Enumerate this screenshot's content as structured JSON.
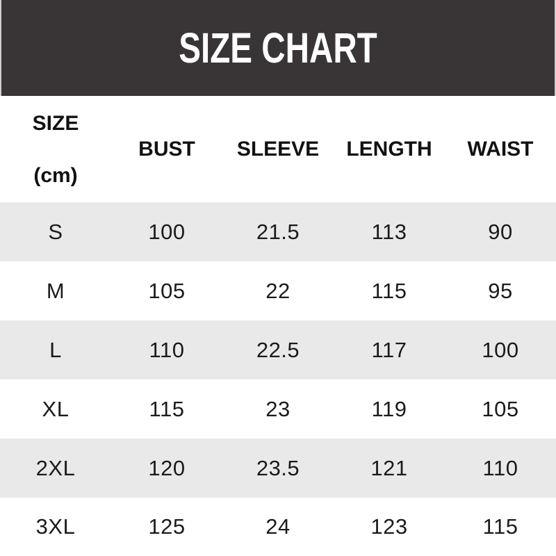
{
  "title": "SIZE CHART",
  "colors": {
    "banner_bg": "#393536",
    "banner_text": "#ffffff",
    "row_alt_bg": "#e9e9e9",
    "text": "#1b1b1b"
  },
  "table": {
    "unit_column": {
      "line1": "SIZE",
      "line2": "(cm)"
    },
    "columns": [
      "BUST",
      "SLEEVE",
      "LENGTH",
      "WAIST"
    ],
    "rows": [
      {
        "size": "S",
        "bust": "100",
        "sleeve": "21.5",
        "length": "113",
        "waist": "90"
      },
      {
        "size": "M",
        "bust": "105",
        "sleeve": "22",
        "length": "115",
        "waist": "95"
      },
      {
        "size": "L",
        "bust": "110",
        "sleeve": "22.5",
        "length": "117",
        "waist": "100"
      },
      {
        "size": "XL",
        "bust": "115",
        "sleeve": "23",
        "length": "119",
        "waist": "105"
      },
      {
        "size": "2XL",
        "bust": "120",
        "sleeve": "23.5",
        "length": "121",
        "waist": "110"
      },
      {
        "size": "3XL",
        "bust": "125",
        "sleeve": "24",
        "length": "123",
        "waist": "115"
      }
    ]
  },
  "chart_data": {
    "type": "table",
    "title": "SIZE CHART",
    "unit": "cm",
    "categories": [
      "S",
      "M",
      "L",
      "XL",
      "2XL",
      "3XL"
    ],
    "series": [
      {
        "name": "BUST",
        "values": [
          100,
          105,
          110,
          115,
          120,
          125
        ]
      },
      {
        "name": "SLEEVE",
        "values": [
          21.5,
          22,
          22.5,
          23,
          23.5,
          24
        ]
      },
      {
        "name": "LENGTH",
        "values": [
          113,
          115,
          117,
          119,
          121,
          123
        ]
      },
      {
        "name": "WAIST",
        "values": [
          90,
          95,
          100,
          105,
          110,
          115
        ]
      }
    ]
  }
}
